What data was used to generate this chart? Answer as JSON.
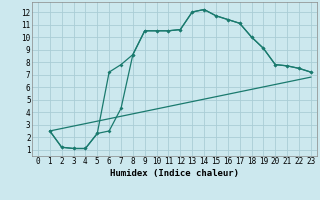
{
  "xlabel": "Humidex (Indice chaleur)",
  "bg_color": "#cce8ee",
  "grid_color": "#aacdd6",
  "line_color": "#1a7a6e",
  "xlim": [
    -0.5,
    23.5
  ],
  "ylim": [
    0.5,
    12.8
  ],
  "xticks": [
    0,
    1,
    2,
    3,
    4,
    5,
    6,
    7,
    8,
    9,
    10,
    11,
    12,
    13,
    14,
    15,
    16,
    17,
    18,
    19,
    20,
    21,
    22,
    23
  ],
  "yticks": [
    1,
    2,
    3,
    4,
    5,
    6,
    7,
    8,
    9,
    10,
    11,
    12
  ],
  "line1_x": [
    1,
    2,
    3,
    4,
    5,
    6,
    7,
    8,
    9,
    10,
    11,
    12,
    13,
    14,
    15,
    16,
    17,
    18,
    19,
    20,
    21,
    22,
    23
  ],
  "line1_y": [
    2.5,
    1.2,
    1.1,
    1.1,
    2.3,
    7.2,
    7.8,
    8.6,
    10.5,
    10.5,
    10.5,
    10.6,
    12.0,
    12.2,
    11.7,
    11.4,
    11.1,
    10.0,
    9.1,
    7.8,
    7.7,
    7.5,
    7.2
  ],
  "line2_x": [
    1,
    2,
    3,
    4,
    5,
    6,
    7,
    8,
    9,
    10,
    11,
    12,
    13,
    14,
    15,
    16,
    17,
    18,
    19,
    20,
    21,
    22,
    23
  ],
  "line2_y": [
    2.5,
    1.2,
    1.1,
    1.1,
    2.3,
    2.5,
    4.3,
    8.6,
    10.5,
    10.5,
    10.5,
    10.6,
    12.0,
    12.2,
    11.7,
    11.4,
    11.1,
    10.0,
    9.1,
    7.8,
    7.7,
    7.5,
    7.2
  ],
  "line3_x": [
    1,
    23
  ],
  "line3_y": [
    2.5,
    6.8
  ],
  "font_size": 6.5,
  "tick_fontsize": 5.5
}
